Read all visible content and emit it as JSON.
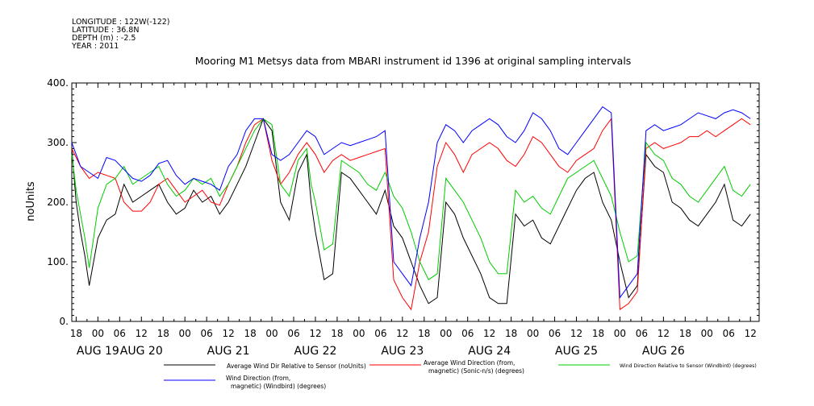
{
  "header": {
    "lines": [
      "LONGITUDE : 122W(-122)",
      "LATITUDE : 36.8N",
      "DEPTH (m) : -2.5",
      "YEAR : 2011"
    ]
  },
  "chart_data": {
    "type": "line",
    "title": "Mooring M1 Metsys data from MBARI instrument id 1396 at original sampling intervals",
    "ylabel": "noUnits",
    "xlabel": "",
    "ylim": [
      0,
      400
    ],
    "y_ticks": [
      0,
      100,
      200,
      300,
      400
    ],
    "y_tick_labels": [
      "0.",
      "100.",
      "200.",
      "300.",
      "400."
    ],
    "xlim": [
      -0.3,
      7.6
    ],
    "x_units": "days since AUG 19 00:00",
    "x_hour_ticks": [
      {
        "x": -0.25,
        "label": "18"
      },
      {
        "x": 0.0,
        "label": "00"
      },
      {
        "x": 0.25,
        "label": "06"
      },
      {
        "x": 0.5,
        "label": "12"
      },
      {
        "x": 0.75,
        "label": "18"
      },
      {
        "x": 1.0,
        "label": "00"
      },
      {
        "x": 1.25,
        "label": "06"
      },
      {
        "x": 1.5,
        "label": "12"
      },
      {
        "x": 1.75,
        "label": "18"
      },
      {
        "x": 2.0,
        "label": "00"
      },
      {
        "x": 2.25,
        "label": "06"
      },
      {
        "x": 2.5,
        "label": "12"
      },
      {
        "x": 2.75,
        "label": "18"
      },
      {
        "x": 3.0,
        "label": "00"
      },
      {
        "x": 3.25,
        "label": "06"
      },
      {
        "x": 3.5,
        "label": "12"
      },
      {
        "x": 3.75,
        "label": "18"
      },
      {
        "x": 4.0,
        "label": "00"
      },
      {
        "x": 4.25,
        "label": "06"
      },
      {
        "x": 4.5,
        "label": "12"
      },
      {
        "x": 4.75,
        "label": "18"
      },
      {
        "x": 5.0,
        "label": "00"
      },
      {
        "x": 5.25,
        "label": "06"
      },
      {
        "x": 5.5,
        "label": "12"
      },
      {
        "x": 5.75,
        "label": "18"
      },
      {
        "x": 6.0,
        "label": "00"
      },
      {
        "x": 6.25,
        "label": "06"
      },
      {
        "x": 6.5,
        "label": "12"
      },
      {
        "x": 6.75,
        "label": "18"
      },
      {
        "x": 7.0,
        "label": "00"
      },
      {
        "x": 7.25,
        "label": "06"
      },
      {
        "x": 7.5,
        "label": "12"
      }
    ],
    "x_day_labels": [
      {
        "x": 0.0,
        "label": "AUG 19"
      },
      {
        "x": 0.5,
        "label": "AUG 20"
      },
      {
        "x": 1.5,
        "label": "AUG 21"
      },
      {
        "x": 2.5,
        "label": "AUG 22"
      },
      {
        "x": 3.5,
        "label": "AUG 23"
      },
      {
        "x": 4.5,
        "label": "AUG 24"
      },
      {
        "x": 5.5,
        "label": "AUG 25"
      },
      {
        "x": 6.5,
        "label": "AUG 26"
      }
    ],
    "series": [
      {
        "name": "Average Wind Dir Relative to Sensor (noUnits)",
        "color": "#000000",
        "x": [
          -0.3,
          -0.25,
          -0.2,
          -0.15,
          -0.1,
          0.0,
          0.1,
          0.2,
          0.3,
          0.4,
          0.5,
          0.6,
          0.7,
          0.8,
          0.9,
          1.0,
          1.1,
          1.2,
          1.3,
          1.4,
          1.5,
          1.6,
          1.7,
          1.8,
          1.9,
          2.0,
          2.1,
          2.2,
          2.3,
          2.4,
          2.45,
          2.5,
          2.6,
          2.7,
          2.8,
          2.9,
          3.0,
          3.1,
          3.2,
          3.3,
          3.4,
          3.5,
          3.6,
          3.7,
          3.8,
          3.9,
          4.0,
          4.1,
          4.2,
          4.3,
          4.4,
          4.5,
          4.6,
          4.7,
          4.8,
          4.9,
          5.0,
          5.1,
          5.2,
          5.3,
          5.4,
          5.5,
          5.6,
          5.7,
          5.8,
          5.9,
          6.0,
          6.1,
          6.2,
          6.3,
          6.4,
          6.5,
          6.6,
          6.7,
          6.8,
          6.9,
          7.0,
          7.1,
          7.2,
          7.3,
          7.4,
          7.5
        ],
        "y": [
          290,
          200,
          150,
          110,
          60,
          140,
          170,
          180,
          230,
          200,
          210,
          220,
          230,
          200,
          180,
          190,
          220,
          200,
          210,
          180,
          200,
          230,
          260,
          300,
          340,
          320,
          200,
          170,
          250,
          280,
          200,
          150,
          70,
          80,
          250,
          240,
          220,
          200,
          180,
          220,
          160,
          140,
          100,
          60,
          30,
          40,
          200,
          180,
          140,
          110,
          80,
          40,
          30,
          30,
          180,
          160,
          170,
          140,
          130,
          160,
          190,
          220,
          240,
          250,
          200,
          170,
          100,
          40,
          60,
          280,
          260,
          250,
          200,
          190,
          170,
          160,
          180,
          200,
          230,
          170,
          160,
          180
        ]
      },
      {
        "name": "Average Wind Direction (from, magnetic) (Sonic-n/s) (degrees)",
        "color": "#ff0000",
        "x": [
          -0.3,
          -0.2,
          -0.1,
          0.0,
          0.1,
          0.2,
          0.3,
          0.4,
          0.5,
          0.6,
          0.7,
          0.8,
          0.9,
          1.0,
          1.1,
          1.2,
          1.3,
          1.4,
          1.5,
          1.6,
          1.7,
          1.8,
          1.9,
          2.0,
          2.1,
          2.2,
          2.3,
          2.4,
          2.5,
          2.6,
          2.7,
          2.8,
          2.9,
          3.0,
          3.1,
          3.2,
          3.3,
          3.4,
          3.5,
          3.6,
          3.7,
          3.8,
          3.9,
          4.0,
          4.1,
          4.2,
          4.3,
          4.4,
          4.5,
          4.6,
          4.7,
          4.8,
          4.9,
          5.0,
          5.1,
          5.2,
          5.3,
          5.4,
          5.5,
          5.6,
          5.7,
          5.8,
          5.9,
          6.0,
          6.1,
          6.2,
          6.3,
          6.4,
          6.5,
          6.6,
          6.7,
          6.8,
          6.9,
          7.0,
          7.1,
          7.2,
          7.3,
          7.4,
          7.5
        ],
        "y": [
          290,
          260,
          240,
          250,
          245,
          240,
          200,
          185,
          185,
          200,
          230,
          240,
          220,
          200,
          210,
          220,
          200,
          195,
          230,
          260,
          300,
          330,
          340,
          270,
          230,
          250,
          280,
          300,
          280,
          250,
          270,
          280,
          270,
          275,
          280,
          285,
          290,
          70,
          40,
          20,
          100,
          150,
          260,
          300,
          280,
          250,
          280,
          290,
          300,
          290,
          270,
          260,
          280,
          310,
          300,
          280,
          260,
          250,
          270,
          280,
          290,
          320,
          340,
          20,
          30,
          50,
          290,
          300,
          290,
          295,
          300,
          310,
          310,
          320,
          310,
          320,
          330,
          340,
          330
        ]
      },
      {
        "name": "Wind Direction Relative to Sensor (Windbird) (degrees)",
        "color": "#00cc00",
        "x": [
          -0.3,
          -0.25,
          -0.2,
          -0.15,
          -0.1,
          0.0,
          0.1,
          0.2,
          0.3,
          0.4,
          0.5,
          0.6,
          0.7,
          0.8,
          0.9,
          1.0,
          1.1,
          1.2,
          1.3,
          1.4,
          1.5,
          1.6,
          1.7,
          1.8,
          1.9,
          2.0,
          2.1,
          2.2,
          2.3,
          2.4,
          2.45,
          2.5,
          2.6,
          2.7,
          2.8,
          2.9,
          3.0,
          3.1,
          3.2,
          3.3,
          3.4,
          3.5,
          3.6,
          3.7,
          3.8,
          3.9,
          4.0,
          4.1,
          4.2,
          4.3,
          4.4,
          4.5,
          4.6,
          4.7,
          4.8,
          4.9,
          5.0,
          5.1,
          5.2,
          5.3,
          5.4,
          5.5,
          5.6,
          5.7,
          5.8,
          5.9,
          6.0,
          6.1,
          6.2,
          6.3,
          6.4,
          6.5,
          6.6,
          6.7,
          6.8,
          6.9,
          7.0,
          7.1,
          7.2,
          7.3,
          7.4,
          7.5
        ],
        "y": [
          280,
          220,
          180,
          140,
          90,
          190,
          230,
          240,
          260,
          230,
          240,
          250,
          260,
          230,
          210,
          220,
          240,
          230,
          240,
          210,
          230,
          260,
          290,
          320,
          340,
          330,
          230,
          210,
          270,
          290,
          230,
          200,
          120,
          130,
          270,
          260,
          250,
          230,
          220,
          250,
          210,
          190,
          150,
          100,
          70,
          80,
          240,
          220,
          200,
          170,
          140,
          100,
          80,
          80,
          220,
          200,
          210,
          190,
          180,
          210,
          240,
          250,
          260,
          270,
          240,
          210,
          150,
          100,
          110,
          300,
          280,
          270,
          240,
          230,
          210,
          200,
          220,
          240,
          260,
          220,
          210,
          230
        ]
      },
      {
        "name": "Wind Direction (from, magnetic) (Windbird) (degrees)",
        "color": "#0000ff",
        "x": [
          -0.3,
          -0.2,
          -0.1,
          0.0,
          0.1,
          0.2,
          0.3,
          0.4,
          0.5,
          0.6,
          0.7,
          0.8,
          0.9,
          1.0,
          1.1,
          1.2,
          1.3,
          1.4,
          1.5,
          1.6,
          1.7,
          1.8,
          1.9,
          2.0,
          2.1,
          2.2,
          2.3,
          2.4,
          2.5,
          2.6,
          2.7,
          2.8,
          2.9,
          3.0,
          3.1,
          3.2,
          3.3,
          3.4,
          3.5,
          3.6,
          3.7,
          3.8,
          3.9,
          4.0,
          4.1,
          4.2,
          4.3,
          4.4,
          4.5,
          4.6,
          4.7,
          4.8,
          4.9,
          5.0,
          5.1,
          5.2,
          5.3,
          5.4,
          5.5,
          5.6,
          5.7,
          5.8,
          5.9,
          6.0,
          6.1,
          6.2,
          6.3,
          6.4,
          6.5,
          6.6,
          6.7,
          6.8,
          6.9,
          7.0,
          7.1,
          7.2,
          7.3,
          7.4,
          7.5
        ],
        "y": [
          300,
          260,
          250,
          240,
          275,
          270,
          255,
          240,
          235,
          245,
          265,
          270,
          245,
          230,
          240,
          235,
          230,
          220,
          260,
          280,
          320,
          340,
          340,
          280,
          270,
          280,
          300,
          320,
          310,
          280,
          290,
          300,
          295,
          300,
          305,
          310,
          320,
          100,
          80,
          60,
          140,
          200,
          300,
          330,
          320,
          300,
          320,
          330,
          340,
          330,
          310,
          300,
          320,
          350,
          340,
          320,
          290,
          280,
          300,
          320,
          340,
          360,
          350,
          40,
          60,
          80,
          320,
          330,
          320,
          325,
          330,
          340,
          350,
          345,
          340,
          350,
          355,
          350,
          340
        ]
      }
    ],
    "legend_position": "bottom",
    "grid": false
  }
}
